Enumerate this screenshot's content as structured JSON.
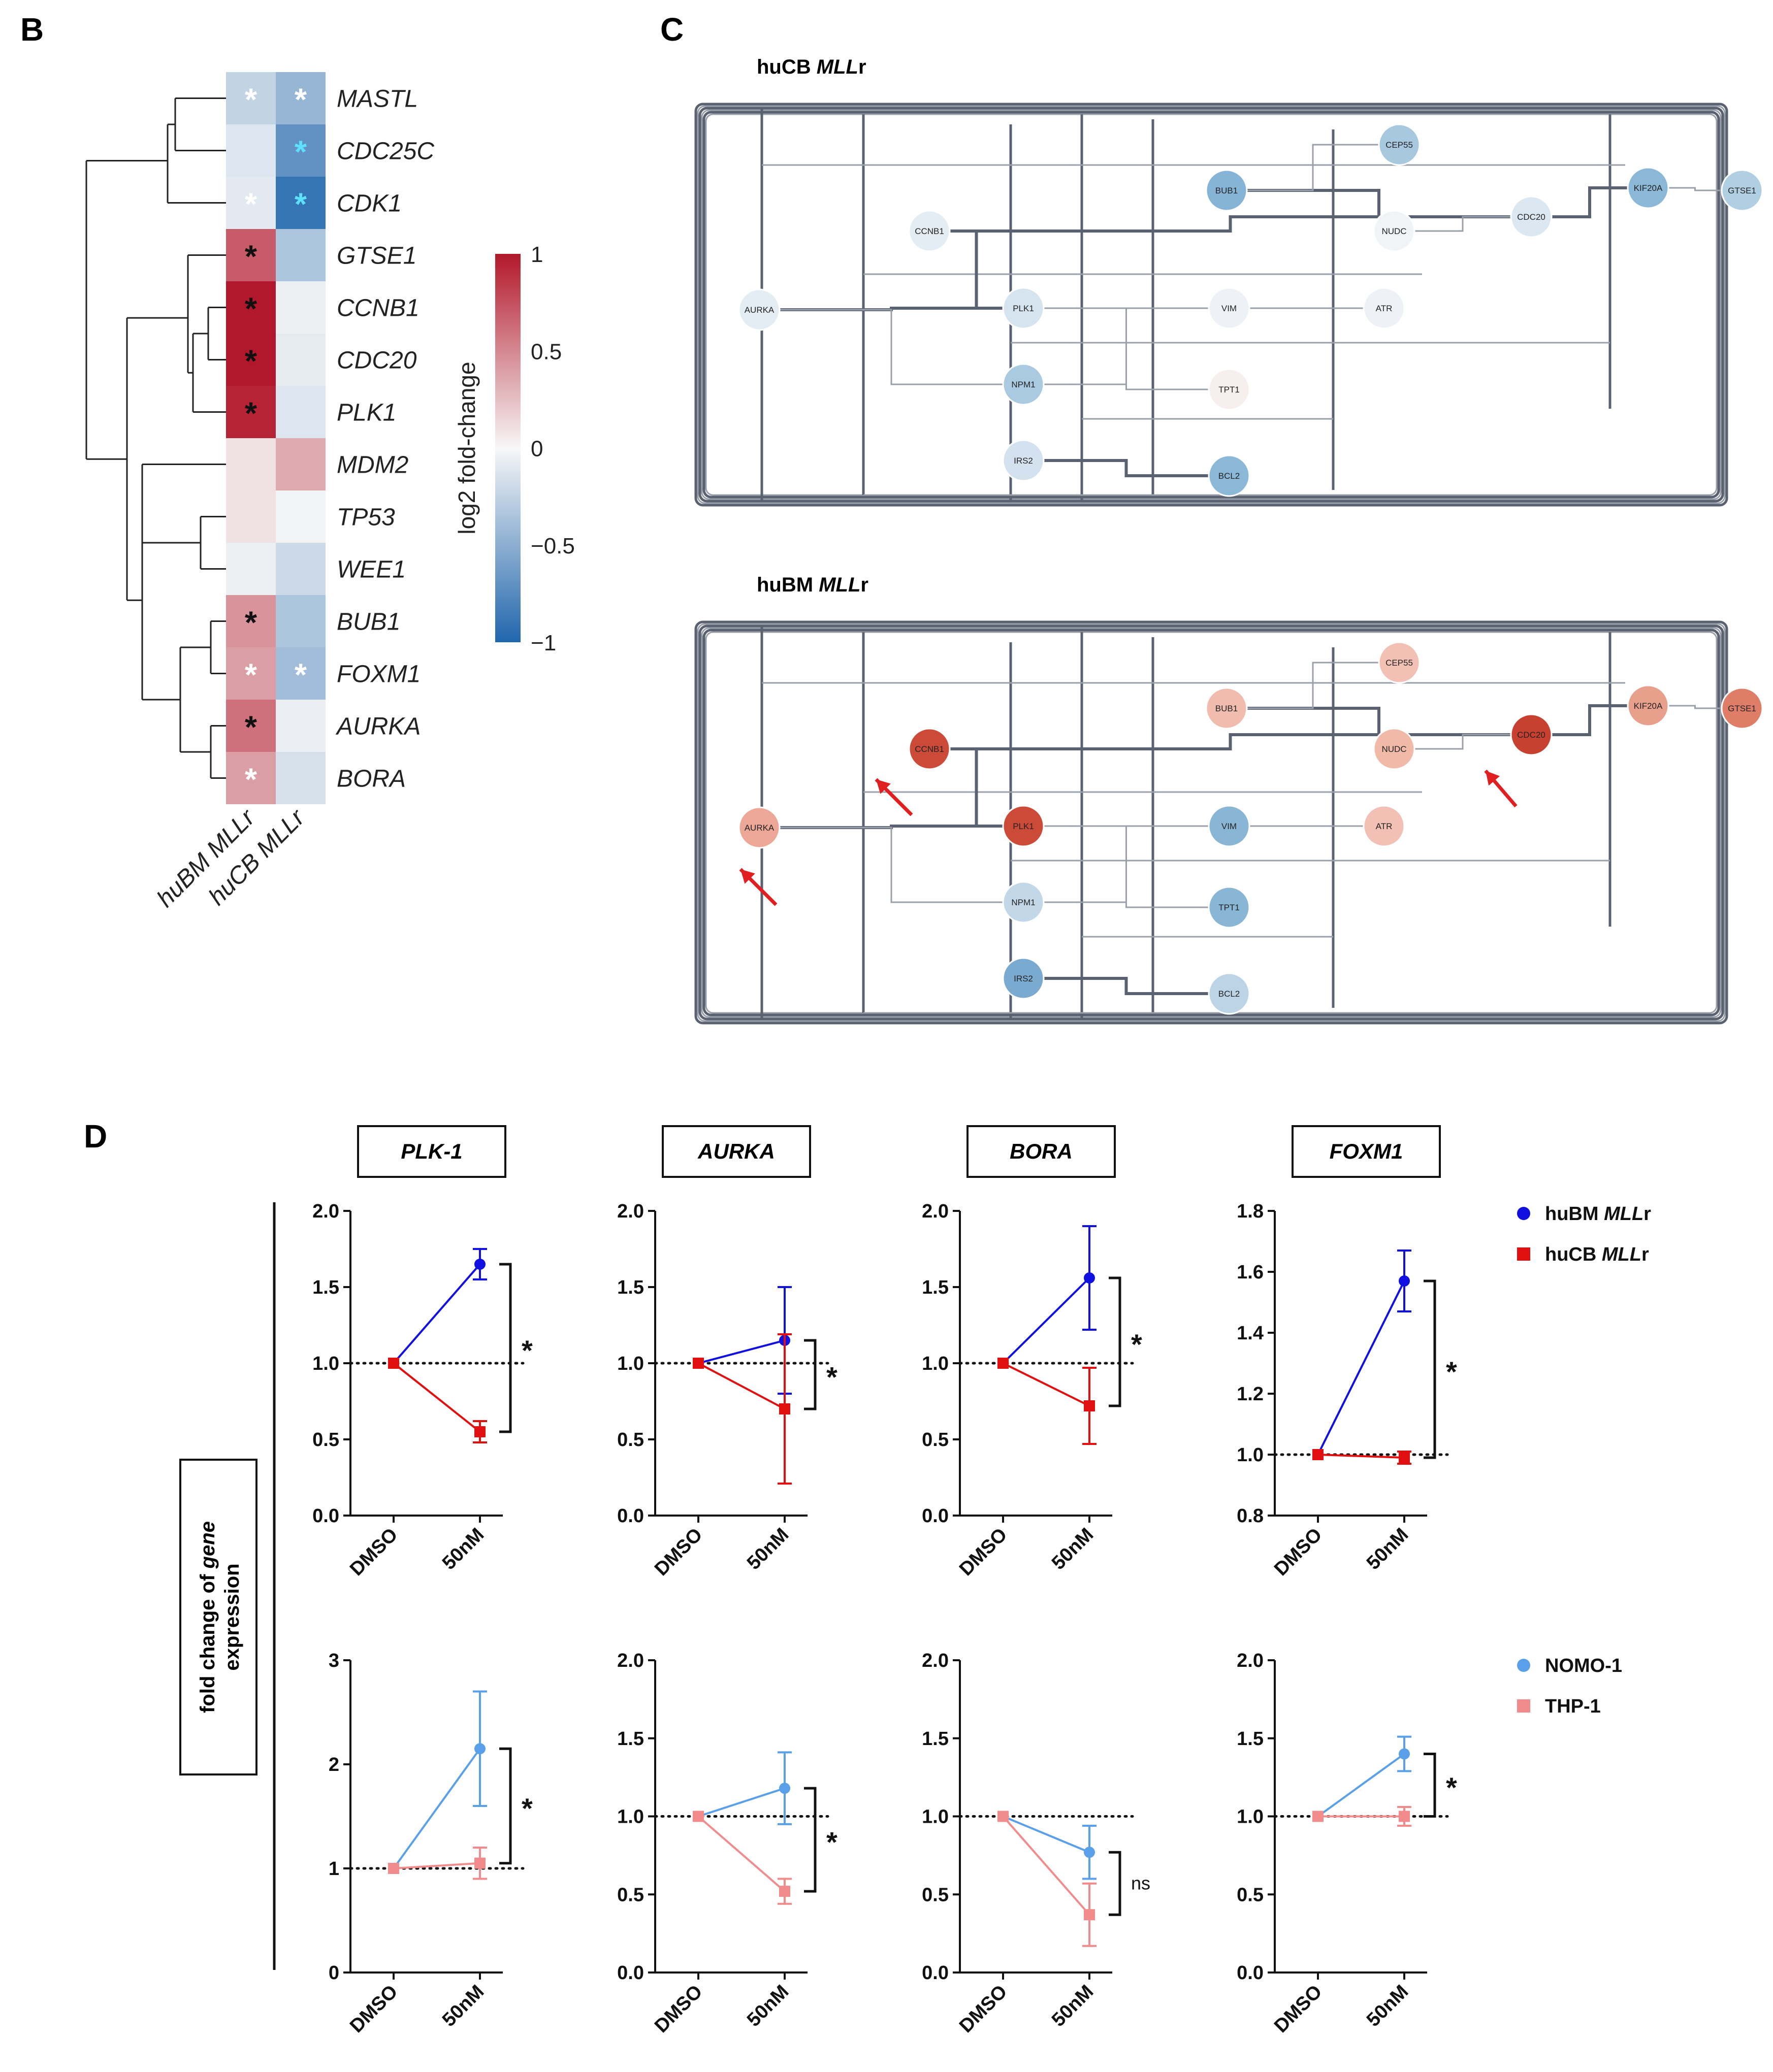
{
  "panels": {
    "B": "B",
    "C": "C",
    "D": "D"
  },
  "colors": {
    "huBM": "#1010e0",
    "huCB": "#e01010",
    "NOMO": "#5aa0e8",
    "THP": "#f28c8c",
    "edge": "#5a6170",
    "edge_light": "#9aa0aa"
  },
  "heatmap": {
    "genes": [
      "MASTL",
      "CDC25C",
      "CDK1",
      "GTSE1",
      "CCNB1",
      "CDC20",
      "PLK1",
      "MDM2",
      "TP53",
      "WEE1",
      "BUB1",
      "FOXM1",
      "AURKA",
      "BORA"
    ],
    "columns": [
      "huBM MLLr",
      "huCB MLLr"
    ],
    "values": [
      [
        -0.25,
        -0.45
      ],
      [
        -0.12,
        -0.7
      ],
      [
        -0.1,
        -0.9
      ],
      [
        0.7,
        -0.35
      ],
      [
        1.0,
        -0.05
      ],
      [
        1.0,
        -0.08
      ],
      [
        0.95,
        -0.12
      ],
      [
        0.1,
        0.35
      ],
      [
        0.1,
        -0.03
      ],
      [
        -0.05,
        -0.2
      ],
      [
        0.45,
        -0.35
      ],
      [
        0.4,
        -0.4
      ],
      [
        0.6,
        -0.06
      ],
      [
        0.4,
        -0.15
      ]
    ],
    "stars": [
      [
        "w",
        "w"
      ],
      [
        "",
        "c"
      ],
      [
        "w",
        "c"
      ],
      [
        "k",
        ""
      ],
      [
        "k",
        ""
      ],
      [
        "k",
        ""
      ],
      [
        "k",
        ""
      ],
      [
        "",
        ""
      ],
      [
        "",
        ""
      ],
      [
        "",
        ""
      ],
      [
        "k",
        ""
      ],
      [
        "w",
        "w"
      ],
      [
        "k",
        ""
      ],
      [
        "w",
        ""
      ]
    ],
    "colorbar": {
      "label": "log2 fold-change",
      "ticks": [
        {
          "v": 1,
          "t": "1"
        },
        {
          "v": 0.5,
          "t": "0.5"
        },
        {
          "v": 0,
          "t": "0"
        },
        {
          "v": -0.5,
          "t": "−0.5"
        },
        {
          "v": -1,
          "t": "−1"
        }
      ]
    }
  },
  "networks": [
    {
      "title_prefix": "huCB ",
      "title_italic": "MLL",
      "title_suffix": "r",
      "nodes": [
        {
          "id": "CEP55",
          "c": "#a7c8df"
        },
        {
          "id": "BUB1",
          "c": "#86b4d6"
        },
        {
          "id": "KIF20A",
          "c": "#8cb8d8"
        },
        {
          "id": "GTSE1",
          "c": "#b1cfe3"
        },
        {
          "id": "CCNB1",
          "c": "#e4edf4"
        },
        {
          "id": "CDC20",
          "c": "#dbe7f1"
        },
        {
          "id": "NUDC",
          "c": "#f1f4f7"
        },
        {
          "id": "AURKA",
          "c": "#e4edf4"
        },
        {
          "id": "PLK1",
          "c": "#d6e4ef"
        },
        {
          "id": "VIM",
          "c": "#eef2f6"
        },
        {
          "id": "ATR",
          "c": "#eef2f6"
        },
        {
          "id": "NPM1",
          "c": "#a9cae0"
        },
        {
          "id": "TPT1",
          "c": "#f7eeee"
        },
        {
          "id": "IRS2",
          "c": "#d3e2ee"
        },
        {
          "id": "BCL2",
          "c": "#8cb8d8"
        }
      ]
    },
    {
      "title_prefix": "huBM ",
      "title_italic": "MLL",
      "title_suffix": "r",
      "nodes": [
        {
          "id": "CEP55",
          "c": "#f2c0b4"
        },
        {
          "id": "BUB1",
          "c": "#f0bcae"
        },
        {
          "id": "KIF20A",
          "c": "#e89f8c"
        },
        {
          "id": "GTSE1",
          "c": "#e07d69"
        },
        {
          "id": "CCNB1",
          "c": "#cc4a38"
        },
        {
          "id": "CDC20",
          "c": "#c8402f"
        },
        {
          "id": "NUDC",
          "c": "#f0b9a8"
        },
        {
          "id": "AURKA",
          "c": "#eca797"
        },
        {
          "id": "PLK1",
          "c": "#cc4a38"
        },
        {
          "id": "VIM",
          "c": "#8ab6d6"
        },
        {
          "id": "ATR",
          "c": "#f2c0b4"
        },
        {
          "id": "NPM1",
          "c": "#c2d8e8"
        },
        {
          "id": "TPT1",
          "c": "#8ab6d6"
        },
        {
          "id": "IRS2",
          "c": "#7aaad0"
        },
        {
          "id": "BCL2",
          "c": "#bcd4e6"
        }
      ]
    }
  ],
  "panelD": {
    "y_axis_label_1": "fold change of ",
    "y_axis_label_gene": "gene",
    "y_axis_label_2": "expression",
    "gene_titles": [
      "PLK-1",
      "AURKA",
      "BORA",
      "FOXM1"
    ],
    "x_categories": [
      "DMSO",
      "50nM"
    ],
    "legend_top": [
      {
        "name": "huBM ",
        "italic": "MLL",
        "suffix": "r",
        "color": "huBM",
        "marker": "circle"
      },
      {
        "name": "huCB ",
        "italic": "MLL",
        "suffix": "r",
        "color": "huCB",
        "marker": "square"
      }
    ],
    "legend_bottom": [
      {
        "name": "NOMO-1",
        "color": "NOMO",
        "marker": "circle"
      },
      {
        "name": "THP-1",
        "color": "THP",
        "marker": "square"
      }
    ]
  },
  "chart_data": [
    {
      "type": "line",
      "id": "top-PLK-1",
      "title": "PLK-1",
      "categories": [
        "DMSO",
        "50nM"
      ],
      "ylim": [
        0,
        2.0
      ],
      "yticks": [
        0,
        0.5,
        1.0,
        1.5,
        2.0
      ],
      "tick_decimals": 1,
      "baseline": 1.0,
      "series": [
        {
          "name": "huBM MLLr",
          "values": [
            1.0,
            1.65
          ],
          "err": [
            0,
            0.1
          ],
          "color": "huBM",
          "marker": "circle"
        },
        {
          "name": "huCB MLLr",
          "values": [
            1.0,
            0.55
          ],
          "err": [
            0,
            0.07
          ],
          "color": "huCB",
          "marker": "square"
        }
      ],
      "sig": "*",
      "bracket": [
        1.65,
        0.55
      ]
    },
    {
      "type": "line",
      "id": "top-AURKA",
      "title": "AURKA",
      "categories": [
        "DMSO",
        "50nM"
      ],
      "ylim": [
        0,
        2.0
      ],
      "yticks": [
        0,
        0.5,
        1.0,
        1.5,
        2.0
      ],
      "tick_decimals": 1,
      "baseline": 1.0,
      "series": [
        {
          "name": "huBM MLLr",
          "values": [
            1.0,
            1.15
          ],
          "err": [
            0,
            0.35
          ],
          "color": "huBM",
          "marker": "circle"
        },
        {
          "name": "huCB MLLr",
          "values": [
            1.0,
            0.7
          ],
          "err": [
            0,
            0.49
          ],
          "color": "huCB",
          "marker": "square"
        }
      ],
      "sig": "*",
      "bracket": [
        1.15,
        0.7
      ]
    },
    {
      "type": "line",
      "id": "top-BORA",
      "title": "BORA",
      "categories": [
        "DMSO",
        "50nM"
      ],
      "ylim": [
        0,
        2.0
      ],
      "yticks": [
        0,
        0.5,
        1.0,
        1.5,
        2.0
      ],
      "tick_decimals": 1,
      "baseline": 1.0,
      "series": [
        {
          "name": "huBM MLLr",
          "values": [
            1.0,
            1.56
          ],
          "err": [
            0,
            0.34
          ],
          "color": "huBM",
          "marker": "circle"
        },
        {
          "name": "huCB MLLr",
          "values": [
            1.0,
            0.72
          ],
          "err": [
            0,
            0.25
          ],
          "color": "huCB",
          "marker": "square"
        }
      ],
      "sig": "*",
      "bracket": [
        1.56,
        0.72
      ]
    },
    {
      "type": "line",
      "id": "top-FOXM1",
      "title": "FOXM1",
      "categories": [
        "DMSO",
        "50nM"
      ],
      "ylim": [
        0.8,
        1.8
      ],
      "yticks": [
        0.8,
        1.0,
        1.2,
        1.4,
        1.6,
        1.8
      ],
      "tick_decimals": 1,
      "baseline": 1.0,
      "series": [
        {
          "name": "huBM MLLr",
          "values": [
            1.0,
            1.57
          ],
          "err": [
            0,
            0.1
          ],
          "color": "huBM",
          "marker": "circle"
        },
        {
          "name": "huCB MLLr",
          "values": [
            1.0,
            0.99
          ],
          "err": [
            0,
            0.02
          ],
          "color": "huCB",
          "marker": "square"
        }
      ],
      "sig": "*",
      "bracket": [
        1.57,
        0.99
      ]
    },
    {
      "type": "line",
      "id": "bot-PLK-1",
      "title": "PLK-1",
      "categories": [
        "DMSO",
        "50nM"
      ],
      "ylim": [
        0,
        3
      ],
      "yticks": [
        0,
        1,
        2,
        3
      ],
      "tick_decimals": 0,
      "baseline": 1.0,
      "series": [
        {
          "name": "NOMO-1",
          "values": [
            1.0,
            2.15
          ],
          "err": [
            0,
            0.55
          ],
          "color": "NOMO",
          "marker": "circle"
        },
        {
          "name": "THP-1",
          "values": [
            1.0,
            1.05
          ],
          "err": [
            0,
            0.15
          ],
          "color": "THP",
          "marker": "square"
        }
      ],
      "sig": "*",
      "bracket": [
        2.15,
        1.05
      ]
    },
    {
      "type": "line",
      "id": "bot-AURKA",
      "title": "AURKA",
      "categories": [
        "DMSO",
        "50nM"
      ],
      "ylim": [
        0,
        2.0
      ],
      "yticks": [
        0,
        0.5,
        1.0,
        1.5,
        2.0
      ],
      "tick_decimals": 1,
      "baseline": 1.0,
      "series": [
        {
          "name": "NOMO-1",
          "values": [
            1.0,
            1.18
          ],
          "err": [
            0,
            0.23
          ],
          "color": "NOMO",
          "marker": "circle"
        },
        {
          "name": "THP-1",
          "values": [
            1.0,
            0.52
          ],
          "err": [
            0,
            0.08
          ],
          "color": "THP",
          "marker": "square"
        }
      ],
      "sig": "*",
      "bracket": [
        1.18,
        0.52
      ]
    },
    {
      "type": "line",
      "id": "bot-BORA",
      "title": "BORA",
      "categories": [
        "DMSO",
        "50nM"
      ],
      "ylim": [
        0,
        2.0
      ],
      "yticks": [
        0,
        0.5,
        1.0,
        1.5,
        2.0
      ],
      "tick_decimals": 1,
      "baseline": 1.0,
      "series": [
        {
          "name": "NOMO-1",
          "values": [
            1.0,
            0.77
          ],
          "err": [
            0,
            0.17
          ],
          "color": "NOMO",
          "marker": "circle"
        },
        {
          "name": "THP-1",
          "values": [
            1.0,
            0.37
          ],
          "err": [
            0,
            0.2
          ],
          "color": "THP",
          "marker": "square"
        }
      ],
      "sig": "ns",
      "bracket": [
        0.77,
        0.37
      ]
    },
    {
      "type": "line",
      "id": "bot-FOXM1",
      "title": "FOXM1",
      "categories": [
        "DMSO",
        "50nM"
      ],
      "ylim": [
        0,
        2.0
      ],
      "yticks": [
        0,
        0.5,
        1.0,
        1.5,
        2.0
      ],
      "tick_decimals": 1,
      "baseline": 1.0,
      "series": [
        {
          "name": "NOMO-1",
          "values": [
            1.0,
            1.4
          ],
          "err": [
            0,
            0.11
          ],
          "color": "NOMO",
          "marker": "circle"
        },
        {
          "name": "THP-1",
          "values": [
            1.0,
            1.0
          ],
          "err": [
            0,
            0.06
          ],
          "color": "THP",
          "marker": "square"
        }
      ],
      "sig": "*",
      "bracket": [
        1.4,
        1.0
      ]
    }
  ]
}
